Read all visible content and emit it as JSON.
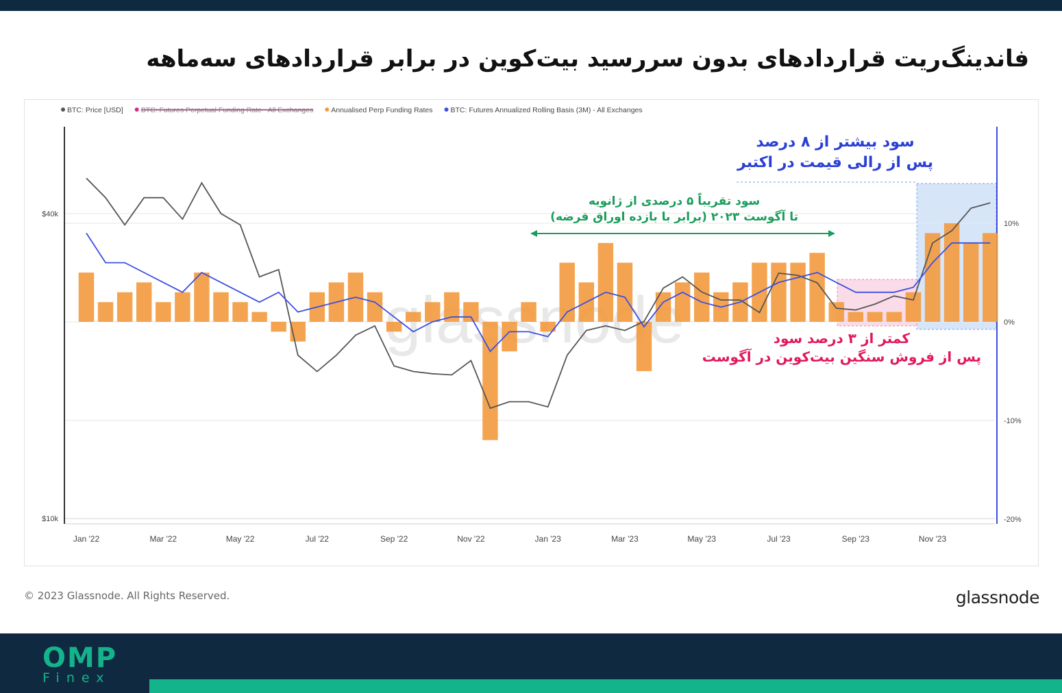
{
  "title": "فاندینگ‌ریت قراردادهای بدون سررسید بیت‌کوین در برابر قراردادهای سه‌ماهه",
  "chart_data": {
    "type": "combo",
    "categories": [
      "Jan '22",
      null,
      null,
      null,
      "Mar '22",
      null,
      null,
      null,
      "May '22",
      null,
      null,
      null,
      "Jul '22",
      null,
      null,
      null,
      "Sep '22",
      null,
      null,
      null,
      "Nov '22",
      null,
      null,
      null,
      "Jan '23",
      null,
      null,
      null,
      "Mar '23",
      null,
      null,
      null,
      "May '23",
      null,
      null,
      null,
      "Jul '23",
      null,
      null,
      null,
      "Sep '23",
      null,
      null,
      null,
      "Nov '23",
      null,
      null,
      null
    ],
    "series": [
      {
        "name": "BTC: Price [USD]",
        "color": "#555555",
        "kind": "line",
        "axis": "y",
        "values": [
          47000,
          43000,
          38000,
          43000,
          43000,
          39000,
          46000,
          40000,
          38000,
          30000,
          31000,
          21000,
          19500,
          21000,
          23000,
          24000,
          20000,
          19500,
          19300,
          19200,
          20500,
          16500,
          17000,
          17000,
          16600,
          21000,
          23500,
          24000,
          23500,
          24500,
          28500,
          30000,
          28000,
          27000,
          27000,
          25500,
          30500,
          30200,
          29200,
          26000,
          25800,
          26500,
          27500,
          27000,
          35000,
          37000,
          41000,
          42000
        ]
      },
      {
        "name": "Annualised Perp Funding Rates",
        "color": "#f39a3e",
        "kind": "bar",
        "axis": "y2",
        "values": [
          5,
          2,
          3,
          4,
          2,
          3,
          5,
          3,
          2,
          1,
          -1,
          -2,
          3,
          4,
          5,
          3,
          -1,
          1,
          2,
          3,
          2,
          -12,
          -3,
          2,
          -1,
          6,
          4,
          8,
          6,
          -5,
          3,
          4,
          5,
          3,
          4,
          6,
          6,
          6,
          7,
          2,
          1,
          1,
          1,
          3,
          9,
          10,
          8,
          9
        ]
      },
      {
        "name": "BTC: Futures Annualized Rolling Basis (3M) - All Exchanges",
        "color": "#3b4fe0",
        "kind": "line",
        "axis": "y2",
        "values": [
          9,
          6,
          6,
          5,
          4,
          3,
          5,
          4,
          3,
          2,
          3,
          1,
          1.5,
          2,
          2.5,
          2,
          0.5,
          -1,
          0,
          0.5,
          0.5,
          -3,
          -1,
          -1,
          -1.5,
          1,
          2,
          3,
          2.5,
          -0.5,
          2,
          3,
          2,
          1.5,
          2,
          3,
          4,
          4.5,
          5,
          4,
          3,
          3,
          3,
          3.5,
          6,
          8,
          8,
          8
        ]
      }
    ],
    "hidden_series": [
      {
        "name": "BTC: Futures Perpetual Funding Rate - All Exchanges",
        "color": "#e0248a"
      }
    ],
    "ylim": [
      9750,
      59400
    ],
    "yscale": "log",
    "yticks": [
      {
        "value": 10000,
        "label": "$10k"
      },
      {
        "value": 40000,
        "label": "$40k"
      }
    ],
    "y2lim": [
      -20.5,
      19.8
    ],
    "y2ticks": [
      {
        "value": -20,
        "label": "-20%"
      },
      {
        "value": -10,
        "label": "-10%"
      },
      {
        "value": 0,
        "label": "0%"
      },
      {
        "value": 10,
        "label": "10%"
      }
    ],
    "grid": true,
    "watermark": "glassnode",
    "annotations": [
      {
        "lines": [
          "سود بیشتر از ۸ درصد",
          "پس از رالی قیمت در اکتبر"
        ],
        "color": "#2a3fd6"
      },
      {
        "lines": [
          "سود تقریباً ۵ درصدی از ژانویه",
          "تا آگوست ۲۰۲۳ (برابر با بازده اوراق قرضه)"
        ],
        "color": "#1a9c5a"
      },
      {
        "lines": [
          "کمتر از ۳ درصد سود",
          "پس از فروش سنگین بیت‌کوین در آگوست"
        ],
        "color": "#e0185c"
      }
    ]
  },
  "footer": {
    "copyright": "© 2023 Glassnode. All Rights Reserved.",
    "brand": "glassnode"
  },
  "logo": {
    "name": "OMP",
    "sub": "Finex"
  }
}
